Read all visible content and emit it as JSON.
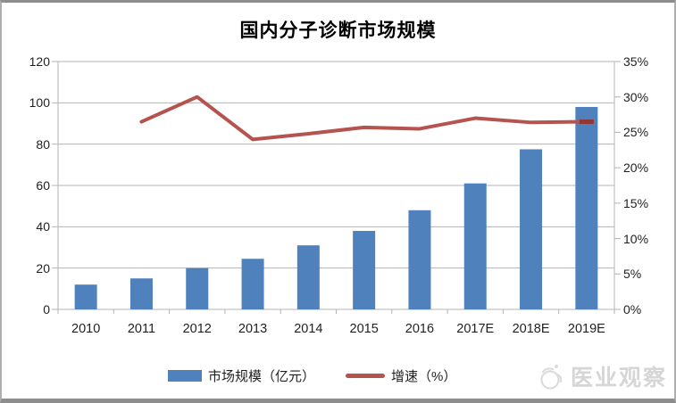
{
  "title": "国内分子诊断市场规模",
  "chart_data": {
    "type": "bar+line combo",
    "title": "国内分子诊断市场规模",
    "categories": [
      "2010",
      "2011",
      "2012",
      "2013",
      "2014",
      "2015",
      "2016",
      "2017E",
      "2018E",
      "2019E"
    ],
    "series": [
      {
        "name": "市场规模（亿元）",
        "type": "bar",
        "axis": "left",
        "color": "#4f81bd",
        "values": [
          12,
          15,
          20,
          24.5,
          31,
          38,
          48,
          61,
          77.5,
          98
        ]
      },
      {
        "name": "增速（%）",
        "type": "line",
        "axis": "right",
        "color": "#b5534f",
        "end_marker_color": "#943734",
        "values": [
          null,
          26.5,
          30.0,
          24.0,
          24.8,
          25.7,
          25.5,
          27.0,
          26.4,
          26.5
        ]
      }
    ],
    "left_axis": {
      "min": 0,
      "max": 120,
      "step": 20,
      "tick_labels": [
        "120",
        "100",
        "80",
        "60",
        "40",
        "20",
        "0"
      ]
    },
    "right_axis": {
      "min": 0,
      "max": 35,
      "step": 5,
      "tick_labels": [
        "35%",
        "30%",
        "25%",
        "20%",
        "15%",
        "10%",
        "5%",
        "0%"
      ]
    },
    "grid": true,
    "gridline_color": "#b3b3b3",
    "legend_position": "bottom"
  },
  "legend": {
    "items": [
      {
        "label": "市场规模（亿元）",
        "swatch": "bar",
        "color": "#4f81bd"
      },
      {
        "label": "增速（%）",
        "swatch": "line",
        "color": "#b5534f"
      }
    ]
  },
  "watermark": {
    "text": "医业观察",
    "icon": "bird-logo-icon",
    "color": "#d6d6d6"
  },
  "frame": {
    "border_color": "#8d8d8d"
  }
}
